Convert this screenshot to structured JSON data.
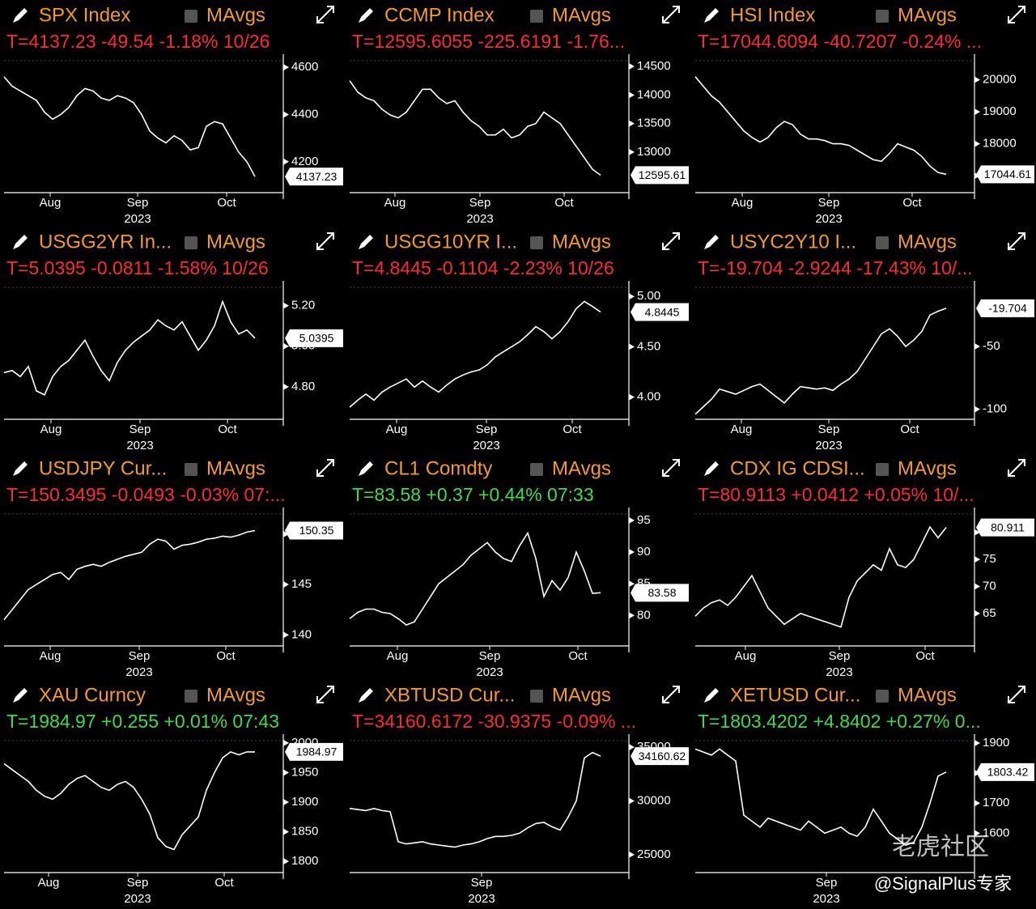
{
  "chart_data": [
    {
      "type": "line",
      "title": "SPX Index",
      "legend": "MAvgs",
      "quote": "T=4137.23 -49.54 -1.18% 10/26",
      "quote_color": "#ff2b2b",
      "color": "#ffffff",
      "values": [
        4560,
        4520,
        4500,
        4480,
        4460,
        4410,
        4380,
        4400,
        4430,
        4480,
        4510,
        4500,
        4470,
        4460,
        4480,
        4470,
        4450,
        4400,
        4330,
        4300,
        4280,
        4310,
        4290,
        4250,
        4260,
        4350,
        4370,
        4360,
        4300,
        4240,
        4200,
        4137.23
      ],
      "last_label": "4137.23",
      "xlim": [
        0,
        34
      ],
      "xticks": [
        {
          "value": 5.7,
          "label": "Aug"
        },
        {
          "value": 16.5,
          "label": "Sep"
        },
        {
          "value": 27.5,
          "label": "Oct"
        }
      ],
      "year_label": "2023",
      "ylim": [
        4069,
        4628
      ],
      "yticks": [
        4200,
        4400,
        4600
      ]
    },
    {
      "type": "line",
      "title": "CCMP Index",
      "legend": "MAvgs",
      "quote": "T=12595.6055 -225.6191 -1.76...",
      "quote_color": "#ff2b2b",
      "color": "#ffffff",
      "values": [
        14250,
        14050,
        13950,
        13900,
        13750,
        13650,
        13600,
        13700,
        13900,
        14100,
        14100,
        13950,
        13850,
        13900,
        13700,
        13550,
        13450,
        13300,
        13300,
        13400,
        13250,
        13300,
        13450,
        13500,
        13700,
        13600,
        13500,
        13300,
        13100,
        12900,
        12700,
        12595.6055
      ],
      "last_label": "12595.61",
      "xlim": [
        0,
        34
      ],
      "xticks": [
        {
          "value": 5.6,
          "label": "Aug"
        },
        {
          "value": 16.1,
          "label": "Sep"
        },
        {
          "value": 26.5,
          "label": "Oct"
        }
      ],
      "year_label": "2023",
      "ylim": [
        12290,
        14600
      ],
      "yticks": [
        13000,
        13500,
        14000,
        14500
      ]
    },
    {
      "type": "line",
      "title": "HSI Index",
      "legend": "MAvgs",
      "quote": "T=17044.6094 -40.7207 -0.24% ...",
      "quote_color": "#ff2b2b",
      "color": "#ffffff",
      "values": [
        20100,
        19800,
        19500,
        19300,
        19000,
        18700,
        18400,
        18200,
        18050,
        18200,
        18500,
        18700,
        18600,
        18300,
        18150,
        18150,
        18100,
        18000,
        18000,
        17950,
        17800,
        17650,
        17500,
        17450,
        17700,
        18000,
        17900,
        17800,
        17600,
        17300,
        17100,
        17044.6094
      ],
      "last_label": "17044.61",
      "xlim": [
        0,
        34
      ],
      "xticks": [
        {
          "value": 5.8,
          "label": "Aug"
        },
        {
          "value": 16.5,
          "label": "Sep"
        },
        {
          "value": 26.8,
          "label": "Oct"
        }
      ],
      "year_label": "2023",
      "ylim": [
        16470,
        20600
      ],
      "yticks": [
        17000,
        18000,
        19000,
        20000
      ]
    },
    {
      "type": "line",
      "title": "USGG2YR In...",
      "legend": "MAvgs",
      "quote": "T=5.0395 -0.0811 -1.58% 10/26",
      "quote_color": "#ff2b2b",
      "color": "#ffffff",
      "values": [
        4.87,
        4.88,
        4.85,
        4.9,
        4.78,
        4.76,
        4.85,
        4.9,
        4.93,
        4.98,
        5.03,
        4.95,
        4.88,
        4.83,
        4.92,
        4.98,
        5.02,
        5.05,
        5.08,
        5.13,
        5.1,
        5.08,
        5.12,
        5.05,
        4.98,
        5.03,
        5.1,
        5.22,
        5.12,
        5.06,
        5.08,
        5.0395
      ],
      "last_label": "5.0395",
      "xlim": [
        0,
        34
      ],
      "xticks": [
        {
          "value": 5.8,
          "label": "Aug"
        },
        {
          "value": 16.8,
          "label": "Sep"
        },
        {
          "value": 27.6,
          "label": "Oct"
        }
      ],
      "year_label": "2023",
      "ylim": [
        4.64,
        5.29
      ],
      "yticks": [
        {
          "value": 4.8,
          "label": "4.80"
        },
        {
          "value": 5.0,
          "label": "5.00"
        },
        {
          "value": 5.2,
          "label": "5.20"
        }
      ]
    },
    {
      "type": "line",
      "title": "USGG10YR I...",
      "legend": "MAvgs",
      "quote": "T=4.8445 -0.1104 -2.23% 10/26",
      "quote_color": "#ff2b2b",
      "color": "#ffffff",
      "values": [
        3.9,
        3.97,
        4.03,
        3.97,
        4.05,
        4.1,
        4.14,
        4.18,
        4.1,
        4.16,
        4.1,
        4.05,
        4.12,
        4.18,
        4.22,
        4.25,
        4.27,
        4.32,
        4.4,
        4.45,
        4.5,
        4.55,
        4.62,
        4.7,
        4.65,
        4.58,
        4.65,
        4.75,
        4.88,
        4.95,
        4.9,
        4.8445
      ],
      "last_label": "4.8445",
      "xlim": [
        0,
        34
      ],
      "xticks": [
        {
          "value": 5.8,
          "label": "Aug"
        },
        {
          "value": 16.9,
          "label": "Sep"
        },
        {
          "value": 27.5,
          "label": "Oct"
        }
      ],
      "year_label": "2023",
      "ylim": [
        3.78,
        5.09
      ],
      "yticks": [
        {
          "value": 4.0,
          "label": "4.00"
        },
        {
          "value": 4.5,
          "label": "4.50"
        },
        {
          "value": 5.0,
          "label": "5.00"
        }
      ]
    },
    {
      "type": "line",
      "title": "USYC2Y10 I...",
      "legend": "MAvgs",
      "quote": "T=-19.704 -2.9244 -17.43% 10/...",
      "quote_color": "#ff2b2b",
      "color": "#ffffff",
      "values": [
        -104,
        -98,
        -92,
        -84,
        -86,
        -88,
        -85,
        -82,
        -80,
        -85,
        -90,
        -95,
        -88,
        -82,
        -83,
        -84,
        -83,
        -85,
        -80,
        -76,
        -70,
        -60,
        -50,
        -40,
        -36,
        -42,
        -50,
        -45,
        -38,
        -25,
        -22,
        -19.704
      ],
      "last_label": "-19.704",
      "xlim": [
        0,
        34
      ],
      "xticks": [
        {
          "value": 5.7,
          "label": "Aug"
        },
        {
          "value": 16.5,
          "label": "Sep"
        },
        {
          "value": 26.5,
          "label": "Oct"
        }
      ],
      "year_label": "2023",
      "ylim": [
        -108,
        -3
      ],
      "yticks": [
        -100,
        -50
      ]
    },
    {
      "type": "line",
      "title": "USDJPY Cur...",
      "legend": "MAvgs",
      "quote": "T=150.3495 -0.0493 -0.03% 07:...",
      "quote_color": "#ff2b2b",
      "color": "#ffffff",
      "values": [
        141.5,
        142.5,
        143.5,
        144.5,
        145,
        145.5,
        146,
        146.2,
        145.5,
        146.5,
        146.8,
        147,
        146.8,
        147.2,
        147.5,
        147.8,
        148,
        148.2,
        149,
        149.5,
        149.3,
        148.5,
        148.9,
        149,
        149.2,
        149.5,
        149.6,
        149.8,
        149.7,
        149.9,
        150.2,
        150.3495
      ],
      "last_label": "150.35",
      "xlim": [
        0,
        34
      ],
      "xticks": [
        {
          "value": 5.7,
          "label": "Aug"
        },
        {
          "value": 16.7,
          "label": "Sep"
        },
        {
          "value": 27.4,
          "label": "Oct"
        }
      ],
      "year_label": "2023",
      "ylim": [
        138.9,
        152.0
      ],
      "yticks": [
        140,
        145,
        150
      ]
    },
    {
      "type": "line",
      "title": "CL1 Comdty",
      "legend": "MAvgs",
      "quote": "T=83.58 +0.37 +0.44% 07:33",
      "quote_color": "#3ddc4a",
      "color": "#ffffff",
      "values": [
        79.5,
        80.5,
        81,
        81,
        80.5,
        80.3,
        79.5,
        78.5,
        79,
        81,
        83,
        85,
        86,
        87,
        88,
        89.5,
        90.5,
        91.5,
        90,
        89,
        88.5,
        91,
        93,
        89,
        83,
        85.5,
        84,
        86,
        90,
        87,
        83.5,
        83.58
      ],
      "last_label": "83.58",
      "xlim": [
        0,
        34
      ],
      "xticks": [
        {
          "value": 5.9,
          "label": "Aug"
        },
        {
          "value": 17.3,
          "label": "Sep"
        },
        {
          "value": 28.2,
          "label": "Oct"
        }
      ],
      "year_label": "2023",
      "ylim": [
        75.2,
        96.0
      ],
      "yticks": [
        80,
        85,
        90,
        95
      ]
    },
    {
      "type": "line",
      "title": "CDX IG CDSI...",
      "legend": "MAvgs",
      "quote": "T=80.9113 +0.0412 +0.05% 10/...",
      "quote_color": "#ff2b2b",
      "color": "#ffffff",
      "values": [
        64.5,
        66,
        67,
        67.5,
        66.5,
        68,
        70,
        72,
        69,
        66,
        64.5,
        63,
        64,
        65,
        64.5,
        64,
        63.5,
        63,
        62.5,
        68,
        71,
        72.5,
        74,
        73,
        77,
        74,
        73.5,
        75,
        78,
        81,
        79,
        80.9113
      ],
      "last_label": "80.911",
      "xlim": [
        0,
        34
      ],
      "xticks": [
        {
          "value": 6.2,
          "label": "Aug"
        },
        {
          "value": 17.8,
          "label": "Sep"
        },
        {
          "value": 28.4,
          "label": "Oct"
        }
      ],
      "year_label": "2023",
      "ylim": [
        59.0,
        83.4
      ],
      "yticks": [
        65,
        70,
        75,
        80
      ]
    },
    {
      "type": "line",
      "title": "XAU Curncy",
      "legend": "MAvgs",
      "quote": "T=1984.97 +0.255 +0.01% 07:43",
      "quote_color": "#3ddc4a",
      "color": "#ffffff",
      "values": [
        1965,
        1955,
        1945,
        1935,
        1920,
        1910,
        1905,
        1915,
        1930,
        1940,
        1945,
        1935,
        1925,
        1920,
        1930,
        1935,
        1925,
        1905,
        1880,
        1840,
        1825,
        1820,
        1845,
        1860,
        1875,
        1920,
        1950,
        1975,
        1985,
        1980,
        1985,
        1984.97
      ],
      "last_label": "1984.97",
      "xlim": [
        0,
        34
      ],
      "xticks": [
        {
          "value": 5.5,
          "label": "Aug"
        },
        {
          "value": 16.5,
          "label": "Sep"
        },
        {
          "value": 27.2,
          "label": "Oct"
        }
      ],
      "year_label": "2023",
      "ylim": [
        1781,
        2004
      ],
      "yticks": [
        1800,
        1850,
        1900,
        1950,
        2000
      ]
    },
    {
      "type": "line",
      "title": "XBTUSD Cur...",
      "legend": "MAvgs",
      "quote": "T=34160.6172 -30.9375 -0.09% ...",
      "quote_color": "#ff2b2b",
      "color": "#ffffff",
      "values": [
        29300,
        29200,
        29100,
        29300,
        29100,
        29000,
        26200,
        26000,
        26100,
        26200,
        26000,
        25900,
        25800,
        25700,
        25900,
        26000,
        26200,
        26500,
        26700,
        26700,
        26800,
        27000,
        27500,
        27900,
        28000,
        27600,
        27300,
        28500,
        30000,
        34000,
        34500,
        34160.6172
      ],
      "last_label": "34160.62",
      "xlim": [
        0,
        34
      ],
      "xticks": [
        {
          "value": 16.3,
          "label": "Sep"
        }
      ],
      "year_label": "2023",
      "ylim": [
        23340,
        35600
      ],
      "yticks": [
        25000,
        30000,
        35000
      ]
    },
    {
      "type": "line",
      "title": "XETUSD Cur...",
      "legend": "MAvgs",
      "quote": "T=1803.4202 +4.8402 +0.27% 0...",
      "quote_color": "#3ddc4a",
      "color": "#ffffff",
      "values": [
        1880,
        1870,
        1860,
        1880,
        1860,
        1840,
        1660,
        1640,
        1620,
        1650,
        1640,
        1630,
        1620,
        1610,
        1640,
        1620,
        1600,
        1610,
        1620,
        1600,
        1590,
        1620,
        1680,
        1640,
        1600,
        1580,
        1560,
        1570,
        1620,
        1700,
        1790,
        1803.4202
      ],
      "last_label": "1803.42",
      "xlim": [
        0,
        34
      ],
      "xticks": [
        {
          "value": 16.2,
          "label": "Sep"
        }
      ],
      "year_label": "2023",
      "ylim": [
        1469,
        1908
      ],
      "yticks": [
        1600,
        1700,
        1800,
        1900
      ]
    }
  ],
  "watermark": "老虎社区",
  "credit": "@SignalPlus专家"
}
